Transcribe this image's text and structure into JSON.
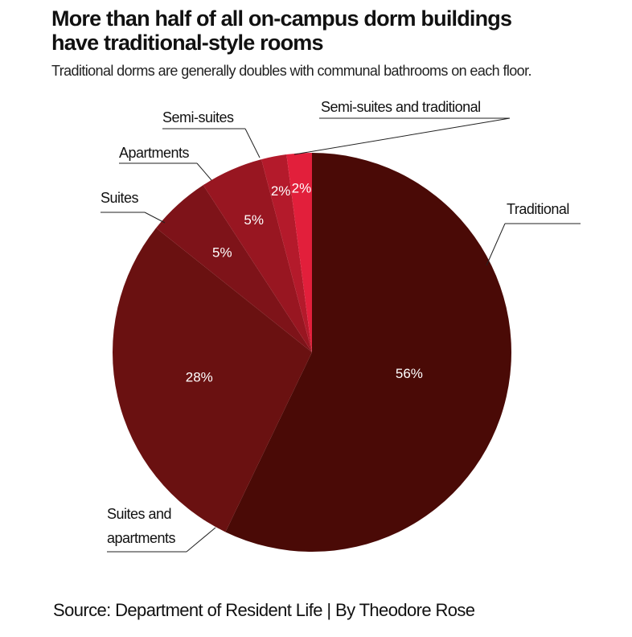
{
  "chart_data": {
    "type": "pie",
    "title": "More than half of all on-campus dorm buildings have traditional-style rooms",
    "subtitle": "Traditional dorms are generally doubles with communal bathrooms on each floor.",
    "categories": [
      "Traditional",
      "Suites and apartments",
      "Suites",
      "Apartments",
      "Semi-suites",
      "Semi-suites and traditional"
    ],
    "values": [
      56,
      28,
      5,
      5,
      2,
      2
    ],
    "value_labels": [
      "56%",
      "28%",
      "5%",
      "5%",
      "2%",
      "2%"
    ],
    "colors": [
      "#4a0a06",
      "#6a1111",
      "#7e1319",
      "#981621",
      "#b41a2b",
      "#e21f3b"
    ],
    "source": "Source: Department of Resident Life | By Theodore Rose"
  }
}
